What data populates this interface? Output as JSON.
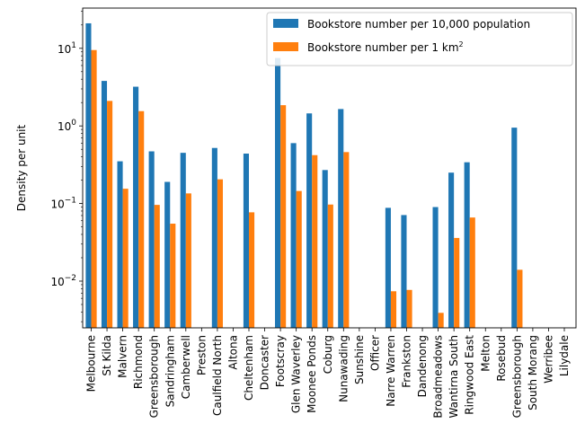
{
  "chart_data": {
    "type": "bar",
    "ylabel": "Density per unit",
    "yscale": "log",
    "ylim": [
      0.0025,
      33
    ],
    "y_ticks": [
      {
        "value": 0.01,
        "base": "10",
        "exp": "−2"
      },
      {
        "value": 0.1,
        "base": "10",
        "exp": "−1"
      },
      {
        "value": 1,
        "base": "10",
        "exp": "0"
      },
      {
        "value": 10,
        "base": "10",
        "exp": "1"
      }
    ],
    "legend_position": "top-right",
    "categories": [
      "Melbourne",
      "St Kilda",
      "Malvern",
      "Richmond",
      "Greensborough",
      "Sandringham",
      "Camberwell",
      "Preston",
      "Caulfield North",
      "Altona",
      "Cheltenham",
      "Doncaster",
      "Footscray",
      "Glen Waverley",
      "Moonee Ponds",
      "Coburg",
      "Nunawading",
      "Sunshine",
      "Officer",
      "Narre Warren",
      "Frankston",
      "Dandenong",
      "Broadmeadows",
      "Wantirna South",
      "Ringwood East",
      "Melton",
      "Rosebud",
      "Greensborough",
      "South Morang",
      "Werribee",
      "Lilydale"
    ],
    "series": [
      {
        "name": "Bookstore number per 10,000 population",
        "color": "#1f77b4",
        "values": [
          21,
          3.8,
          0.35,
          3.2,
          0.47,
          0.19,
          0.45,
          null,
          0.52,
          null,
          0.44,
          null,
          7.5,
          0.6,
          1.45,
          0.27,
          1.65,
          null,
          null,
          0.088,
          0.071,
          null,
          0.09,
          0.25,
          0.34,
          null,
          null,
          0.95,
          null,
          null,
          null
        ]
      },
      {
        "name_prefix": "Bookstore number per 1 km",
        "name_sup": "2",
        "color": "#ff7f0e",
        "values": [
          9.5,
          2.1,
          0.155,
          1.55,
          0.096,
          0.055,
          0.135,
          null,
          0.205,
          null,
          0.077,
          null,
          1.85,
          0.145,
          0.42,
          0.097,
          0.46,
          null,
          null,
          0.0074,
          0.0077,
          null,
          0.0039,
          0.036,
          0.066,
          null,
          null,
          0.014,
          null,
          null,
          null
        ]
      }
    ]
  }
}
